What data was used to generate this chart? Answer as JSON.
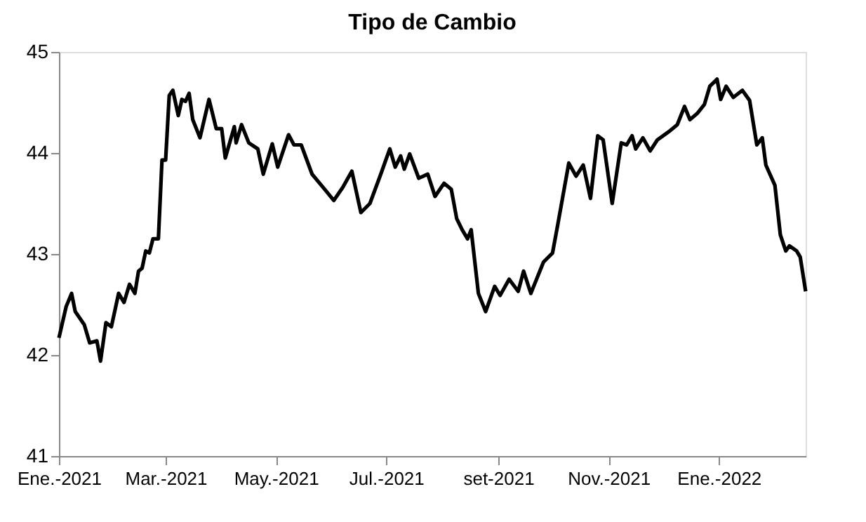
{
  "chart_data": {
    "type": "line",
    "title": "Tipo de Cambio",
    "x": [
      "2021-01-01",
      "2021-01-05",
      "2021-01-08",
      "2021-01-10",
      "2021-01-15",
      "2021-01-18",
      "2021-01-22",
      "2021-01-24",
      "2021-01-27",
      "2021-01-30",
      "2021-02-03",
      "2021-02-06",
      "2021-02-09",
      "2021-02-12",
      "2021-02-14",
      "2021-02-16",
      "2021-02-18",
      "2021-02-20",
      "2021-02-22",
      "2021-02-25",
      "2021-02-27",
      "2021-03-01",
      "2021-03-03",
      "2021-03-05",
      "2021-03-08",
      "2021-03-10",
      "2021-03-12",
      "2021-03-14",
      "2021-03-16",
      "2021-03-20",
      "2021-03-25",
      "2021-03-29",
      "2021-04-01",
      "2021-04-03",
      "2021-04-08",
      "2021-04-09",
      "2021-04-12",
      "2021-04-16",
      "2021-04-21",
      "2021-04-24",
      "2021-04-29",
      "2021-05-02",
      "2021-05-08",
      "2021-05-11",
      "2021-05-15",
      "2021-05-21",
      "2021-05-28",
      "2021-06-02",
      "2021-06-07",
      "2021-06-12",
      "2021-06-17",
      "2021-06-22",
      "2021-06-28",
      "2021-07-03",
      "2021-07-06",
      "2021-07-09",
      "2021-07-11",
      "2021-07-14",
      "2021-07-19",
      "2021-07-24",
      "2021-07-28",
      "2021-08-02",
      "2021-08-06",
      "2021-08-09",
      "2021-08-12",
      "2021-08-15",
      "2021-08-17",
      "2021-08-21",
      "2021-08-25",
      "2021-08-30",
      "2021-09-02",
      "2021-09-07",
      "2021-09-12",
      "2021-09-15",
      "2021-09-19",
      "2021-09-26",
      "2021-10-01",
      "2021-10-04",
      "2021-10-10",
      "2021-10-14",
      "2021-10-18",
      "2021-10-22",
      "2021-10-26",
      "2021-10-29",
      "2021-11-03",
      "2021-11-08",
      "2021-11-11",
      "2021-11-14",
      "2021-11-16",
      "2021-11-20",
      "2021-11-24",
      "2021-11-28",
      "2021-12-05",
      "2021-12-09",
      "2021-12-13",
      "2021-12-16",
      "2021-12-20",
      "2021-12-24",
      "2021-12-27",
      "2021-12-31",
      "2022-01-02",
      "2022-01-05",
      "2022-01-09",
      "2022-01-14",
      "2022-01-18",
      "2022-01-22",
      "2022-01-25",
      "2022-01-27",
      "2022-02-01",
      "2022-02-04",
      "2022-02-07",
      "2022-02-09",
      "2022-02-13",
      "2022-02-15",
      "2022-02-18"
    ],
    "series": [
      {
        "color": "#000000",
        "values": [
          42.17,
          42.48,
          42.61,
          42.43,
          42.3,
          42.12,
          42.14,
          41.94,
          42.32,
          42.28,
          42.61,
          42.52,
          42.7,
          42.61,
          42.83,
          42.86,
          43.03,
          43.01,
          43.15,
          43.15,
          43.93,
          43.93,
          44.57,
          44.62,
          44.37,
          44.53,
          44.51,
          44.59,
          44.33,
          44.15,
          44.53,
          44.24,
          44.24,
          43.95,
          44.26,
          44.1,
          44.28,
          44.1,
          44.04,
          43.79,
          44.09,
          43.86,
          44.18,
          44.08,
          44.08,
          43.79,
          43.64,
          43.53,
          43.66,
          43.82,
          43.41,
          43.5,
          43.79,
          44.04,
          43.86,
          43.97,
          43.84,
          43.99,
          43.75,
          43.79,
          43.57,
          43.7,
          43.64,
          43.35,
          43.24,
          43.15,
          43.24,
          42.61,
          42.43,
          42.68,
          42.59,
          42.75,
          42.63,
          42.83,
          42.61,
          42.92,
          43.01,
          43.3,
          43.9,
          43.77,
          43.88,
          43.55,
          44.17,
          44.13,
          43.5,
          44.1,
          44.08,
          44.17,
          44.04,
          44.15,
          44.02,
          44.13,
          44.22,
          44.28,
          44.46,
          44.33,
          44.39,
          44.48,
          44.66,
          44.73,
          44.53,
          44.66,
          44.55,
          44.62,
          44.52,
          44.08,
          44.15,
          43.88,
          43.68,
          43.19,
          43.03,
          43.08,
          43.03,
          42.97,
          42.63
        ]
      }
    ],
    "xlim": [
      "2021-01-01",
      "2022-02-18"
    ],
    "xticks": [
      {
        "value": "2021-01-01",
        "label": "Ene.-2021"
      },
      {
        "value": "2021-03-01",
        "label": "Mar.-2021"
      },
      {
        "value": "2021-05-01",
        "label": "May.-2021"
      },
      {
        "value": "2021-07-01",
        "label": "Jul.-2021"
      },
      {
        "value": "2021-09-01",
        "label": "set-2021"
      },
      {
        "value": "2021-11-01",
        "label": "Nov.-2021"
      },
      {
        "value": "2022-01-01",
        "label": "Ene.-2022"
      }
    ],
    "ylim": [
      41,
      45
    ],
    "yticks": [
      41,
      42,
      43,
      44,
      45
    ],
    "grid": false,
    "marker": "none",
    "line_style": "solid"
  }
}
